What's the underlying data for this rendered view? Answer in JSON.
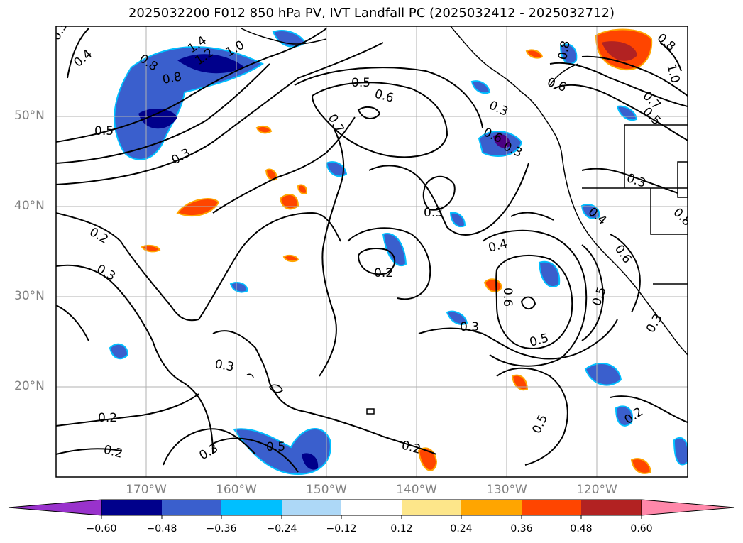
{
  "title": "2025032200 F012 850 hPa PV, IVT Landfall PC (2025032412 - 2025032712)",
  "map": {
    "lat_labels": [
      "50°N",
      "40°N",
      "30°N",
      "20°N"
    ],
    "lon_labels": [
      "170°W",
      "160°W",
      "150°W",
      "140°W",
      "130°W",
      "120°W"
    ],
    "contour_labels": [
      "0.3",
      "0.4",
      "0.8",
      "1.2",
      "1.4",
      "1.0",
      "0.8",
      "0.5",
      "0.3",
      "0.2",
      "0.3",
      "0.5",
      "0.6",
      "0.7",
      "0.3",
      "0.6",
      "0.3",
      "0.8",
      "0.7",
      "0.6",
      "0.5",
      "1.0",
      "0.8",
      "0.3",
      "0.4",
      "0.6",
      "0.5",
      "0.3",
      "0.4",
      "0.6",
      "0.3",
      "0.2",
      "0.3",
      "0.5",
      "0.5",
      "0.2",
      "0.2",
      "0.3",
      "0.3",
      "0.2",
      "0.5",
      "0.2",
      "0.8"
    ],
    "colors": {
      "land_outline": "#000000",
      "grid": "#b0b0b0"
    }
  },
  "colorbar": {
    "tick_labels": [
      "−0.60",
      "−0.48",
      "−0.36",
      "−0.24",
      "−0.12",
      "0.12",
      "0.24",
      "0.36",
      "0.48",
      "0.60"
    ],
    "bins": [
      "#9932cc",
      "#00008b",
      "#3a5fcd",
      "#00bfff",
      "#add8f7",
      "#ffffff",
      "#fde68a",
      "#ffa500",
      "#ff4500",
      "#b22222",
      "#ff88aa"
    ]
  }
}
